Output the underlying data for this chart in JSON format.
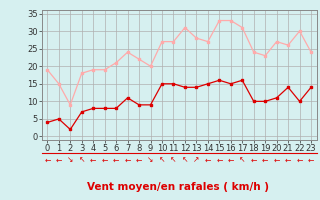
{
  "x": [
    0,
    1,
    2,
    3,
    4,
    5,
    6,
    7,
    8,
    9,
    10,
    11,
    12,
    13,
    14,
    15,
    16,
    17,
    18,
    19,
    20,
    21,
    22,
    23
  ],
  "wind_avg": [
    4,
    5,
    2,
    7,
    8,
    8,
    8,
    11,
    9,
    9,
    15,
    15,
    14,
    14,
    15,
    16,
    15,
    16,
    10,
    10,
    11,
    14,
    10,
    14
  ],
  "wind_gust": [
    19,
    15,
    9,
    18,
    19,
    19,
    21,
    24,
    22,
    20,
    27,
    27,
    31,
    28,
    27,
    33,
    33,
    31,
    24,
    23,
    27,
    26,
    30,
    24
  ],
  "avg_color": "#dd0000",
  "gust_color": "#ffaaaa",
  "bg_color": "#d6f0f0",
  "grid_color": "#b0b0b0",
  "xlabel": "Vent moyen/en rafales ( km/h )",
  "xlabel_color": "#dd0000",
  "arrow_symbols": [
    "←",
    "←",
    "↘",
    "↖",
    "←",
    "←",
    "←",
    "←",
    "←",
    "↘",
    "↖",
    "↖",
    "↖",
    "↗",
    "←",
    "←",
    "←",
    "↖",
    "←",
    "←",
    "←",
    "←",
    "←",
    "←"
  ],
  "ylabel_ticks": [
    0,
    5,
    10,
    15,
    20,
    25,
    30,
    35
  ],
  "xlim": [
    -0.5,
    23.5
  ],
  "ylim": [
    -1,
    36
  ],
  "tick_fontsize": 6,
  "arrow_fontsize": 5.5,
  "xlabel_fontsize": 7.5
}
